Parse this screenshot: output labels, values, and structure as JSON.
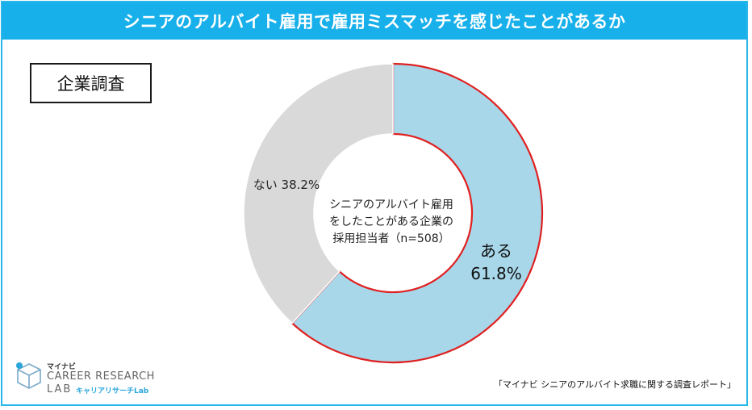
{
  "header": {
    "title": "シニアのアルバイト雇用で雇用ミスマッチを感じたことがあるか"
  },
  "tag": {
    "label": "企業調査"
  },
  "chart_data": {
    "type": "pie",
    "title": "シニアのアルバイト雇用で雇用ミスマッチを感じたことがあるか",
    "center_label": [
      "シニアのアルバイト雇用",
      "をしたことがある企業の",
      "採用担当者（n=508）"
    ],
    "slices": [
      {
        "label": "ある",
        "value": 61.8,
        "value_text": "61.8%",
        "color": "#a8d7ea",
        "outline": "#e02020"
      },
      {
        "label": "ない",
        "value": 38.2,
        "value_text": "38.2%",
        "color": "#d9d9d9",
        "outline": "#ffffff"
      }
    ]
  },
  "logo": {
    "small": "マイナビ",
    "main": "CAREER RESEARCH",
    "lab": "LAB",
    "sub": "キャリアリサーチLab"
  },
  "source": {
    "text": "「マイナビ シニアのアルバイト求職に関する調査レポート」"
  }
}
